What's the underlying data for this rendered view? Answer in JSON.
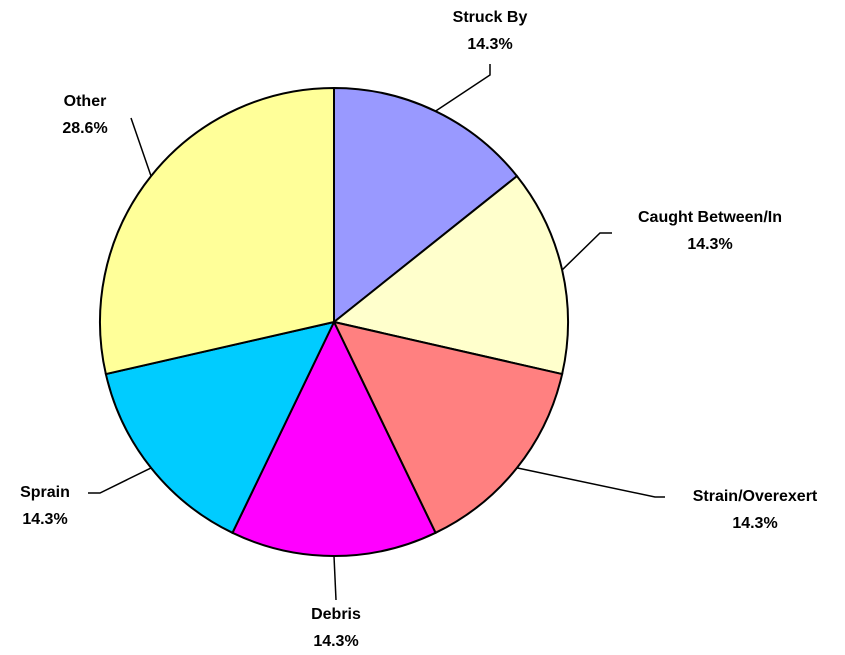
{
  "chart_data": {
    "type": "pie",
    "categories": [
      "Struck By",
      "Caught Between/In",
      "Strain/Overexert",
      "Debris",
      "Sprain",
      "Other"
    ],
    "values": [
      14.3,
      14.3,
      14.3,
      14.3,
      14.3,
      28.6
    ],
    "value_labels": [
      "14.3%",
      "14.3%",
      "14.3%",
      "14.3%",
      "14.3%",
      "28.6%"
    ],
    "colors": [
      "#9999ff",
      "#ffffcc",
      "#ff8080",
      "#ff00ff",
      "#00ccff",
      "#ffff99"
    ]
  }
}
